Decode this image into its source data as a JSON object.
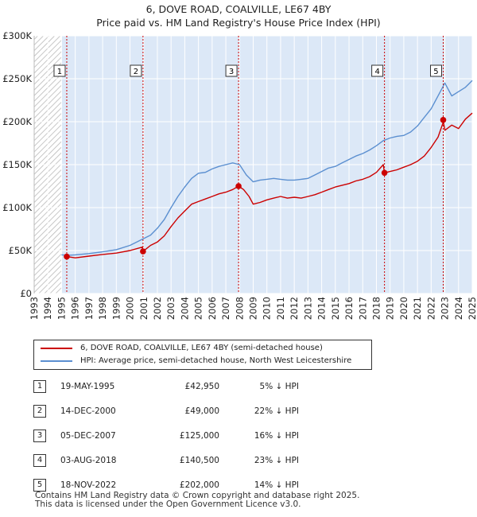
{
  "title": "6, DOVE ROAD, COALVILLE, LE67 4BY",
  "subtitle": "Price paid vs. HM Land Registry's House Price Index (HPI)",
  "colors": {
    "property": "#cc0000",
    "hpi": "#5b8fd0",
    "shade": "#dce8f7",
    "hatch": "#b9b9b9",
    "grid": "#ffffff",
    "marker": "#cc0000"
  },
  "legend": {
    "property_label": "6, DOVE ROAD, COALVILLE, LE67 4BY (semi-detached house)",
    "hpi_label": "HPI: Average price, semi-detached house, North West Leicestershire"
  },
  "sales": [
    {
      "num": "1",
      "date": "19-MAY-1995",
      "price": "£42,950",
      "hpi": "5% ↓ HPI"
    },
    {
      "num": "2",
      "date": "14-DEC-2000",
      "price": "£49,000",
      "hpi": "22% ↓ HPI"
    },
    {
      "num": "3",
      "date": "05-DEC-2007",
      "price": "£125,000",
      "hpi": "16% ↓ HPI"
    },
    {
      "num": "4",
      "date": "03-AUG-2018",
      "price": "£140,500",
      "hpi": "23% ↓ HPI"
    },
    {
      "num": "5",
      "date": "18-NOV-2022",
      "price": "£202,000",
      "hpi": "14% ↓ HPI"
    }
  ],
  "footer": {
    "line1": "Contains HM Land Registry data © Crown copyright and database right 2025.",
    "line2": "This data is licensed under the Open Government Licence v3.0."
  },
  "chart_data": {
    "type": "line",
    "xlim": [
      1993,
      2025
    ],
    "ylim": [
      0,
      300000
    ],
    "y_ticks": [
      0,
      50000,
      100000,
      150000,
      200000,
      250000,
      300000
    ],
    "y_tick_labels": [
      "£0",
      "£50K",
      "£100K",
      "£150K",
      "£200K",
      "£250K",
      "£300K"
    ],
    "x_ticks": [
      1993,
      1994,
      1995,
      1996,
      1997,
      1998,
      1999,
      2000,
      2001,
      2002,
      2003,
      2004,
      2005,
      2006,
      2007,
      2008,
      2009,
      2010,
      2011,
      2012,
      2013,
      2014,
      2015,
      2016,
      2017,
      2018,
      2019,
      2020,
      2021,
      2022,
      2023,
      2024,
      2025
    ],
    "x_tick_labels": [
      "1993",
      "1994",
      "1995",
      "1996",
      "1997",
      "1998",
      "1999",
      "2000",
      "2001",
      "2002",
      "2003",
      "2004",
      "2005",
      "2006",
      "2007",
      "2008",
      "2009",
      "2010",
      "2011",
      "2012",
      "2013",
      "2014",
      "2015",
      "2016",
      "2017",
      "2018",
      "2019",
      "2020",
      "2021",
      "2022",
      "2023",
      "2024",
      "2025"
    ],
    "grid": true,
    "hatched_before": 1995.0,
    "sale_markers": [
      {
        "label": "1",
        "x": 1995.38,
        "y": 42950
      },
      {
        "label": "2",
        "x": 2000.95,
        "y": 49000
      },
      {
        "label": "3",
        "x": 2007.93,
        "y": 125000
      },
      {
        "label": "4",
        "x": 2018.59,
        "y": 140500
      },
      {
        "label": "5",
        "x": 2022.88,
        "y": 202000
      }
    ],
    "series": [
      {
        "name": "6, DOVE ROAD, COALVILLE, LE67 4BY (semi-detached house)",
        "x": [
          1995.38,
          1996,
          1997,
          1998,
          1999,
          2000,
          2000.9,
          2000.95,
          2001.5,
          2002,
          2002.5,
          2003,
          2003.5,
          2004,
          2004.5,
          2005,
          2005.5,
          2006,
          2006.5,
          2007,
          2007.5,
          2007.93,
          2008.3,
          2008.7,
          2009,
          2009.5,
          2010,
          2010.5,
          2011,
          2011.5,
          2012,
          2012.5,
          2013,
          2013.5,
          2014,
          2014.5,
          2015,
          2015.5,
          2016,
          2016.5,
          2017,
          2017.5,
          2018,
          2018.5,
          2018.59,
          2019,
          2019.5,
          2020,
          2020.5,
          2021,
          2021.5,
          2022,
          2022.5,
          2022.85,
          2022.88,
          2023,
          2023.5,
          2024,
          2024.5,
          2025
        ],
        "y": [
          42950,
          41500,
          43500,
          45500,
          47000,
          50000,
          54000,
          49000,
          56000,
          60000,
          67000,
          78000,
          88000,
          96000,
          104000,
          107000,
          110000,
          113000,
          116000,
          118000,
          121000,
          125000,
          121000,
          113000,
          104000,
          106000,
          109000,
          111000,
          113000,
          111000,
          112000,
          111000,
          113000,
          115000,
          118000,
          121000,
          124000,
          126000,
          128000,
          131000,
          133000,
          136000,
          141000,
          150000,
          140500,
          142000,
          144000,
          147000,
          150000,
          154000,
          160000,
          170000,
          182000,
          198000,
          202000,
          190000,
          196000,
          192000,
          203000,
          210000
        ]
      },
      {
        "name": "HPI: Average price, semi-detached house, North West Leicestershire",
        "x": [
          1995.0,
          1995.5,
          1996,
          1997,
          1998,
          1999,
          2000,
          2000.5,
          2001,
          2001.5,
          2002,
          2002.5,
          2003,
          2003.5,
          2004,
          2004.5,
          2005,
          2005.5,
          2006,
          2006.5,
          2007,
          2007.5,
          2008,
          2008.5,
          2009,
          2009.5,
          2010,
          2010.5,
          2011,
          2011.5,
          2012,
          2012.5,
          2013,
          2013.5,
          2014,
          2014.5,
          2015,
          2015.5,
          2016,
          2016.5,
          2017,
          2017.5,
          2018,
          2018.5,
          2019,
          2019.5,
          2020,
          2020.5,
          2021,
          2021.5,
          2022,
          2022.5,
          2023,
          2023.5,
          2024,
          2024.5,
          2025
        ],
        "y": [
          45000,
          44500,
          45000,
          46500,
          48500,
          51000,
          56000,
          60000,
          64000,
          68000,
          76000,
          86000,
          100000,
          113000,
          124000,
          134000,
          140000,
          141000,
          145000,
          148000,
          150000,
          152000,
          150000,
          138000,
          130000,
          132000,
          133000,
          134000,
          133000,
          132000,
          132000,
          133000,
          134000,
          138000,
          142000,
          146000,
          148000,
          152000,
          156000,
          160000,
          163000,
          167000,
          172000,
          178000,
          181000,
          183000,
          184000,
          188000,
          195000,
          205000,
          215000,
          230000,
          245000,
          230000,
          235000,
          240000,
          248000
        ]
      }
    ]
  }
}
